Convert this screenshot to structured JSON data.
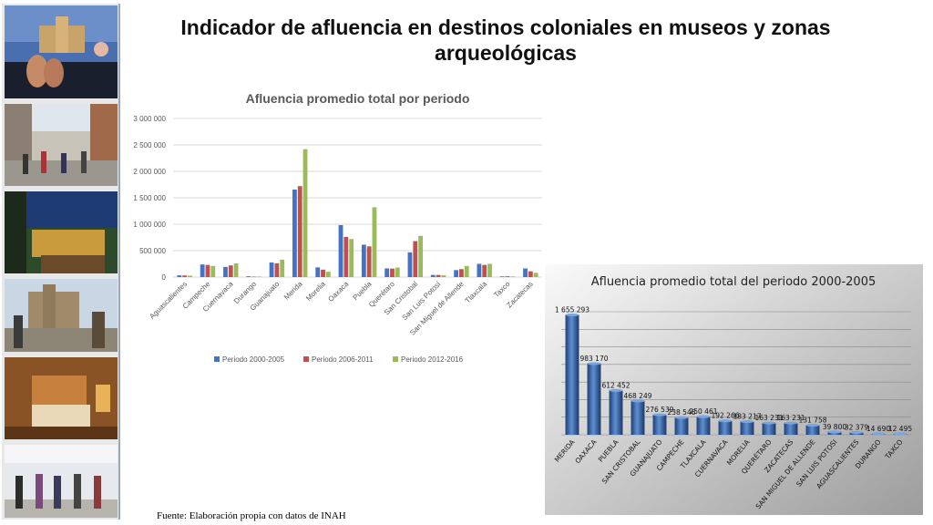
{
  "slide": {
    "title": "Indicador de afluencia en destinos coloniales en museos y zonas arqueológicas",
    "source": "Fuente: Elaboración propia con datos de INAH"
  },
  "photos": [
    {
      "name": "cathedral-terrace-couple-photo"
    },
    {
      "name": "colonial-street-crowd-photo"
    },
    {
      "name": "terrace-night-view-photo"
    },
    {
      "name": "church-plaza-tourists-photo"
    },
    {
      "name": "hotel-room-photo"
    },
    {
      "name": "market-visitors-photo"
    }
  ],
  "chart_data": [
    {
      "type": "bar",
      "title": "Afluencia promedio total por periodo",
      "categories": [
        "Aguascalientes",
        "Campeche",
        "Cuernavaca",
        "Durango",
        "Guanajuato",
        "Merida",
        "Morelia",
        "Oaxaca",
        "Puebla",
        "Querétaro",
        "San Cristobal",
        "San Luis Potosí",
        "San Miguel de Allende",
        "Tlaxcala",
        "Taxco",
        "Zacatecas"
      ],
      "series": [
        {
          "name": "Periodo 2000-2005",
          "color": "#4472c4",
          "values": [
            32379,
            238546,
            192266,
            14690,
            276539,
            1655293,
            183217,
            983170,
            612452,
            163231,
            468249,
            39800,
            131758,
            250461,
            12495,
            163231
          ]
        },
        {
          "name": "Periodo 2006-2011",
          "color": "#c0504d",
          "values": [
            30000,
            230000,
            220000,
            8000,
            260000,
            1720000,
            140000,
            760000,
            580000,
            160000,
            680000,
            40000,
            150000,
            230000,
            15000,
            110000
          ]
        },
        {
          "name": "Periodo 2012-2016",
          "color": "#9bbb59",
          "values": [
            28000,
            210000,
            260000,
            10000,
            330000,
            2420000,
            100000,
            720000,
            1320000,
            180000,
            780000,
            35000,
            210000,
            250000,
            12000,
            80000
          ]
        }
      ],
      "yticks": [
        "0",
        "500 000",
        "1 000 000",
        "1 500 000",
        "2 000 000",
        "2 500 000",
        "3 000 000"
      ],
      "ylim": [
        0,
        3000000
      ],
      "grid": true,
      "legend": "bottom"
    },
    {
      "type": "bar",
      "title": "Afluencia promedio total del periodo 2000-2005",
      "categories": [
        "MERIDA",
        "OAXACA",
        "PUEBLA",
        "SAN CRISTOBAL",
        "GUANAJUATO",
        "CAMPECHE",
        "TLAXCALA",
        "CUERNAVACA",
        "MORELIA",
        "QUERÉTARO",
        "ZACATECAS",
        "SAN MIGUEL DE ALLENDE",
        "SAN LUIS POTOSI",
        "AGUASCALIENTES",
        "DURANGO",
        "TAXCO"
      ],
      "values": [
        1655293,
        983170,
        612452,
        468249,
        276539,
        238546,
        250461,
        192266,
        183217,
        163231,
        163231,
        131758,
        39800,
        32379,
        14690,
        12495
      ],
      "data_labels": [
        "1 655 293",
        "983 170",
        "612 452",
        "468 249",
        "276 539",
        "238 546",
        "250 461",
        "192 266",
        "183 217",
        "163 231",
        "163 231",
        "131 758",
        "39 800",
        "32 379",
        "14 690",
        "12 495"
      ],
      "ylim": [
        0,
        1700000
      ],
      "grid": true,
      "legend": "none"
    }
  ]
}
